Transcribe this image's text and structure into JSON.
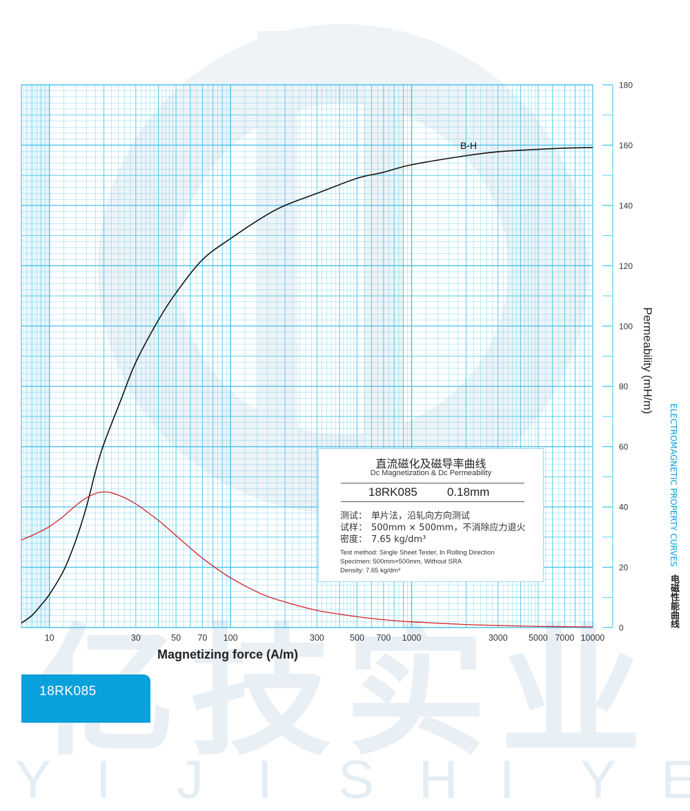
{
  "chart_data": {
    "type": "line",
    "xlabel": "Magnetizing force (A/m)",
    "ylabel_right": "Permeability (mH/m)",
    "x_scale": "log",
    "xlim": [
      7,
      10000
    ],
    "ylim": [
      0,
      180
    ],
    "x_ticks": [
      10,
      30,
      50,
      70,
      100,
      300,
      500,
      700,
      1000,
      3000,
      5000,
      7000,
      10000
    ],
    "y_ticks": [
      0,
      20,
      40,
      60,
      80,
      100,
      120,
      140,
      160,
      180
    ],
    "grid": true,
    "grid_color": "#3cc0e8",
    "series": [
      {
        "name": "B-H",
        "color": "#111111",
        "x": [
          7,
          8,
          9,
          10,
          12,
          14,
          16,
          18,
          20,
          25,
          30,
          40,
          50,
          70,
          100,
          150,
          200,
          300,
          500,
          700,
          1000,
          2000,
          3000,
          5000,
          7000,
          10000
        ],
        "y": [
          1.5,
          4,
          7.5,
          11,
          19,
          29,
          40,
          52,
          61,
          76,
          88,
          102,
          111,
          122,
          129,
          136,
          140,
          144,
          149,
          151,
          153.5,
          156.5,
          157.8,
          158.6,
          159,
          159.2
        ]
      },
      {
        "name": "",
        "color": "#d0202a",
        "x": [
          7,
          8,
          9,
          10,
          12,
          14,
          16,
          18,
          20,
          22,
          25,
          30,
          40,
          50,
          70,
          100,
          150,
          200,
          300,
          500,
          700,
          1000,
          2000,
          3000,
          5000,
          7000,
          10000
        ],
        "y": [
          29,
          30.5,
          32,
          33.5,
          37,
          40.5,
          43,
          44.5,
          45,
          44.7,
          43.5,
          41,
          35.5,
          30.5,
          23,
          16.5,
          11,
          8.5,
          5.7,
          3.6,
          2.6,
          1.9,
          1.0,
          0.7,
          0.4,
          0.3,
          0.2
        ]
      }
    ]
  },
  "series_label": "B-H",
  "side_title_en": "ELECTROMAGNETIC PROPERTY CURVES",
  "side_title_cn": "电磁性能曲线",
  "tab_label": "18RK085",
  "watermark": {
    "cn": "亿技实业",
    "letters": [
      "Y",
      "I",
      "J",
      "I",
      "S",
      "H",
      "I",
      "Y",
      "E"
    ]
  },
  "infobox": {
    "title_cn": "直流磁化及磁导率曲线",
    "title_en": "Dc Magnetization & Dc Permeability",
    "grade": "18RK085",
    "thickness": "0.18mm",
    "rows_cn": [
      {
        "k": "测试：",
        "v": "单片法，沿轧向方向测试"
      },
      {
        "k": "试样：",
        "v": "500mm × 500mm，不消除应力退火"
      },
      {
        "k": "密度：",
        "v": "7.65 kg/dm³"
      }
    ],
    "rows_en": [
      "Test method: Single Sheet Tester, In Rolling Direction",
      "Specimen: 500mm×500mm, Without SRA",
      "Density: 7.65 kg/dm³"
    ]
  },
  "colors": {
    "accent": "#0aa0dc",
    "grid": "#3cc0e8",
    "bh": "#111111",
    "perm": "#d0202a"
  }
}
